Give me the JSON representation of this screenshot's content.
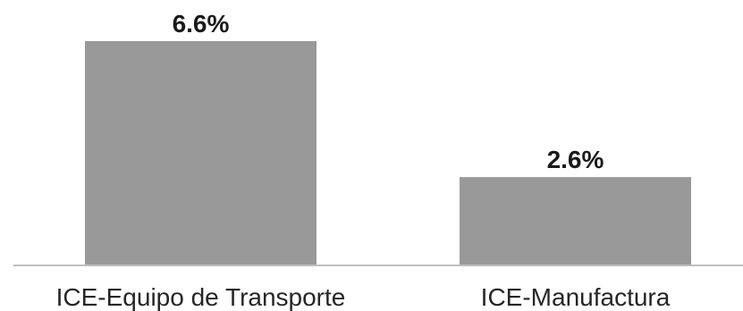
{
  "chart_data": {
    "type": "bar",
    "categories": [
      "ICE-Equipo de Transporte",
      "ICE-Manufactura"
    ],
    "values": [
      6.6,
      2.6
    ],
    "data_labels": [
      "6.6%",
      "2.6%"
    ],
    "title": "",
    "xlabel": "",
    "ylabel": "",
    "ylim": [
      0,
      6.6
    ],
    "grid": false,
    "bar_color": "#999999"
  }
}
